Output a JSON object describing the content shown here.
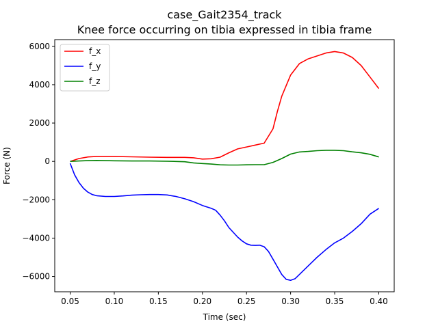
{
  "chart_data": {
    "type": "line",
    "title": "case_Gait2354_track",
    "subtitle": "Knee force occurring on tibia expressed in tibia frame",
    "xlabel": "Time (sec)",
    "ylabel": "Force (N)",
    "xlim": [
      0.0325,
      0.4175
    ],
    "ylim": [
      -6800,
      6350
    ],
    "xticks": [
      0.05,
      0.1,
      0.15,
      0.2,
      0.25,
      0.3,
      0.35,
      0.4
    ],
    "xtick_labels": [
      "0.05",
      "0.10",
      "0.15",
      "0.20",
      "0.25",
      "0.30",
      "0.35",
      "0.40"
    ],
    "yticks": [
      -6000,
      -4000,
      -2000,
      0,
      2000,
      4000,
      6000
    ],
    "ytick_labels": [
      "−6000",
      "−4000",
      "−2000",
      "0",
      "2000",
      "4000",
      "6000"
    ],
    "grid": false,
    "legend_position": "top-left",
    "series": [
      {
        "name": "f_x",
        "color": "#ff0000",
        "points": [
          [
            0.05,
            0
          ],
          [
            0.06,
            150
          ],
          [
            0.07,
            230
          ],
          [
            0.08,
            260
          ],
          [
            0.1,
            260
          ],
          [
            0.12,
            240
          ],
          [
            0.14,
            220
          ],
          [
            0.16,
            210
          ],
          [
            0.18,
            210
          ],
          [
            0.19,
            190
          ],
          [
            0.2,
            120
          ],
          [
            0.21,
            140
          ],
          [
            0.22,
            220
          ],
          [
            0.23,
            450
          ],
          [
            0.24,
            650
          ],
          [
            0.25,
            750
          ],
          [
            0.26,
            850
          ],
          [
            0.27,
            950
          ],
          [
            0.28,
            1700
          ],
          [
            0.285,
            2600
          ],
          [
            0.29,
            3400
          ],
          [
            0.3,
            4500
          ],
          [
            0.31,
            5100
          ],
          [
            0.32,
            5350
          ],
          [
            0.33,
            5500
          ],
          [
            0.34,
            5650
          ],
          [
            0.35,
            5730
          ],
          [
            0.36,
            5650
          ],
          [
            0.37,
            5420
          ],
          [
            0.38,
            5000
          ],
          [
            0.39,
            4400
          ],
          [
            0.4,
            3800
          ]
        ]
      },
      {
        "name": "f_y",
        "color": "#0000ff",
        "points": [
          [
            0.05,
            -100
          ],
          [
            0.055,
            -700
          ],
          [
            0.06,
            -1100
          ],
          [
            0.065,
            -1400
          ],
          [
            0.07,
            -1600
          ],
          [
            0.075,
            -1730
          ],
          [
            0.08,
            -1790
          ],
          [
            0.09,
            -1830
          ],
          [
            0.1,
            -1830
          ],
          [
            0.11,
            -1800
          ],
          [
            0.12,
            -1760
          ],
          [
            0.13,
            -1740
          ],
          [
            0.14,
            -1730
          ],
          [
            0.15,
            -1730
          ],
          [
            0.16,
            -1750
          ],
          [
            0.17,
            -1830
          ],
          [
            0.18,
            -1950
          ],
          [
            0.19,
            -2100
          ],
          [
            0.2,
            -2300
          ],
          [
            0.21,
            -2450
          ],
          [
            0.215,
            -2550
          ],
          [
            0.22,
            -2800
          ],
          [
            0.225,
            -3100
          ],
          [
            0.23,
            -3450
          ],
          [
            0.24,
            -3950
          ],
          [
            0.245,
            -4150
          ],
          [
            0.25,
            -4300
          ],
          [
            0.255,
            -4370
          ],
          [
            0.26,
            -4380
          ],
          [
            0.265,
            -4370
          ],
          [
            0.27,
            -4450
          ],
          [
            0.275,
            -4700
          ],
          [
            0.28,
            -5100
          ],
          [
            0.285,
            -5500
          ],
          [
            0.29,
            -5900
          ],
          [
            0.295,
            -6150
          ],
          [
            0.3,
            -6200
          ],
          [
            0.305,
            -6120
          ],
          [
            0.31,
            -5900
          ],
          [
            0.32,
            -5450
          ],
          [
            0.33,
            -5000
          ],
          [
            0.34,
            -4600
          ],
          [
            0.35,
            -4250
          ],
          [
            0.36,
            -4000
          ],
          [
            0.37,
            -3650
          ],
          [
            0.38,
            -3250
          ],
          [
            0.39,
            -2750
          ],
          [
            0.4,
            -2450
          ]
        ]
      },
      {
        "name": "f_z",
        "color": "#008000",
        "points": [
          [
            0.05,
            0
          ],
          [
            0.06,
            20
          ],
          [
            0.07,
            40
          ],
          [
            0.08,
            50
          ],
          [
            0.1,
            30
          ],
          [
            0.12,
            20
          ],
          [
            0.14,
            20
          ],
          [
            0.16,
            10
          ],
          [
            0.18,
            -20
          ],
          [
            0.19,
            -80
          ],
          [
            0.2,
            -110
          ],
          [
            0.21,
            -140
          ],
          [
            0.22,
            -180
          ],
          [
            0.23,
            -190
          ],
          [
            0.24,
            -190
          ],
          [
            0.25,
            -180
          ],
          [
            0.26,
            -170
          ],
          [
            0.27,
            -170
          ],
          [
            0.28,
            -50
          ],
          [
            0.29,
            150
          ],
          [
            0.3,
            380
          ],
          [
            0.31,
            490
          ],
          [
            0.32,
            520
          ],
          [
            0.33,
            560
          ],
          [
            0.34,
            580
          ],
          [
            0.35,
            580
          ],
          [
            0.36,
            560
          ],
          [
            0.37,
            500
          ],
          [
            0.38,
            450
          ],
          [
            0.39,
            370
          ],
          [
            0.4,
            230
          ]
        ]
      }
    ]
  }
}
